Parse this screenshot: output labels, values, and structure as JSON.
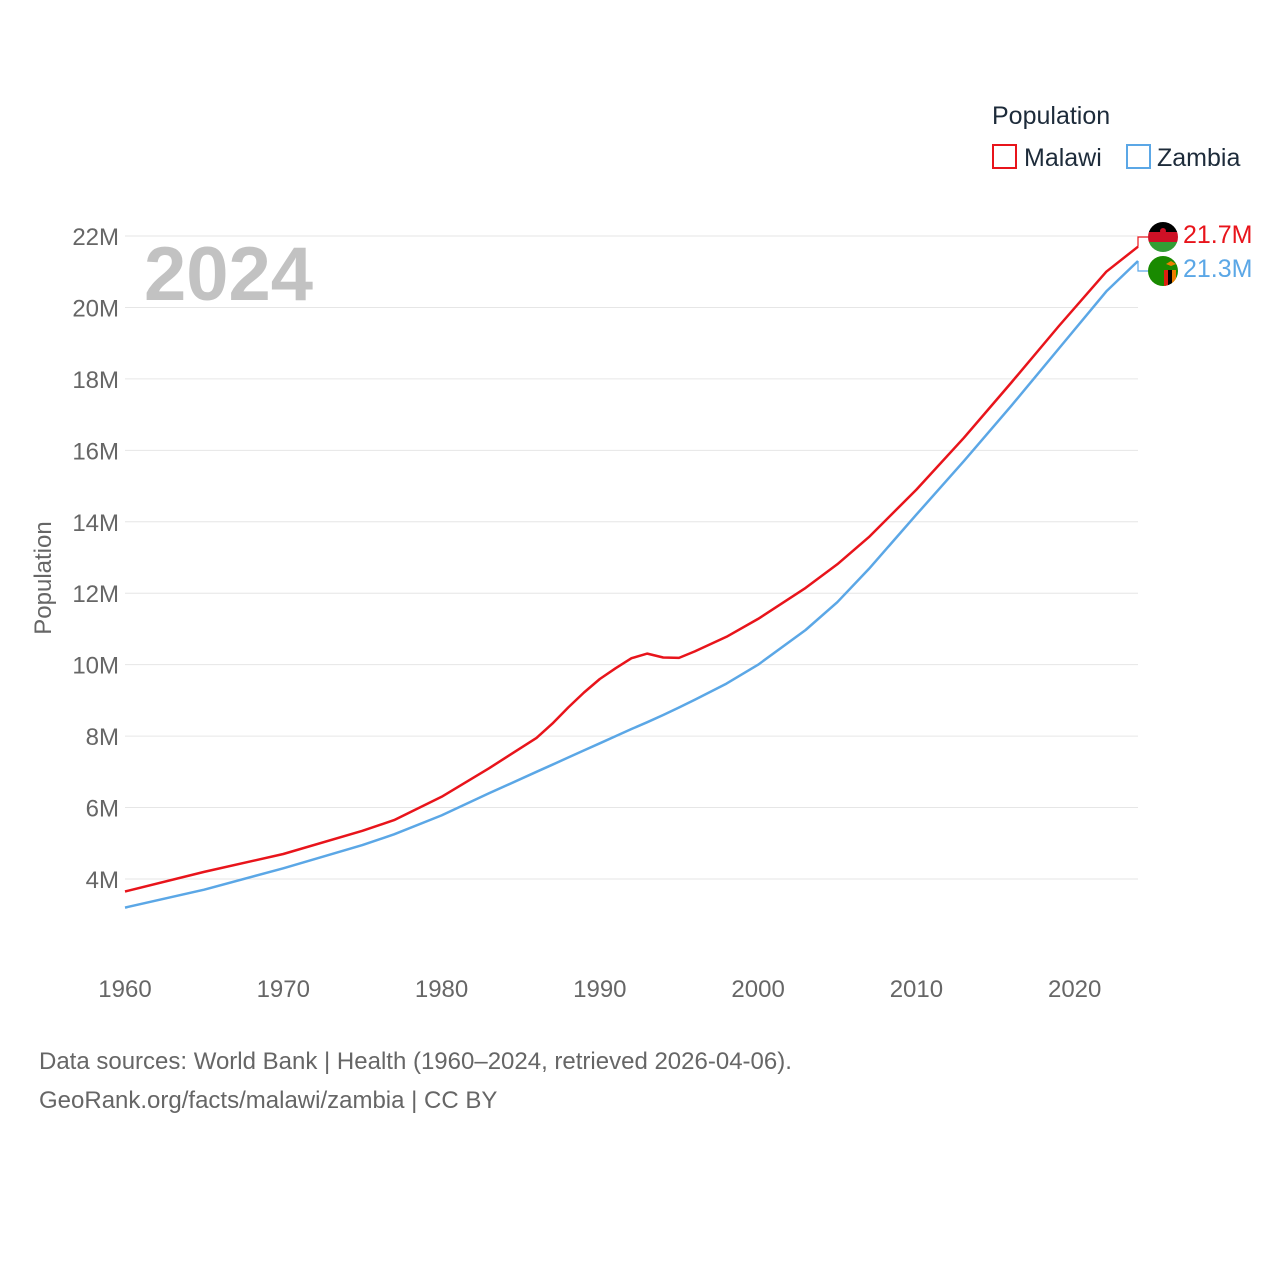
{
  "chart_data": {
    "type": "line",
    "title": "Population",
    "xlabel": "",
    "ylabel": "Population",
    "year_label": "2024",
    "xlim": [
      1960,
      2024
    ],
    "ylim": [
      2000000,
      23000000
    ],
    "x_ticks": [
      1960,
      1970,
      1980,
      1990,
      2000,
      2010,
      2020
    ],
    "x_tick_labels": [
      "1960",
      "1970",
      "1980",
      "1990",
      "2000",
      "2010",
      "2020"
    ],
    "y_ticks": [
      4000000,
      6000000,
      8000000,
      10000000,
      12000000,
      14000000,
      16000000,
      18000000,
      20000000,
      22000000
    ],
    "y_tick_labels": [
      "4M",
      "6M",
      "8M",
      "10M",
      "12M",
      "14M",
      "16M",
      "18M",
      "20M",
      "22M"
    ],
    "legend_position": "top-right",
    "x": [
      1960,
      1965,
      1970,
      1975,
      1977,
      1980,
      1983,
      1986,
      1987,
      1988,
      1989,
      1990,
      1991,
      1992,
      1993,
      1994,
      1995,
      1996,
      1998,
      2000,
      2003,
      2005,
      2007,
      2010,
      2013,
      2016,
      2019,
      2022,
      2024
    ],
    "series": [
      {
        "name": "Malawi",
        "color": "#e8141b",
        "end_label": "21.7M",
        "values": [
          3650000,
          4200000,
          4700000,
          5350000,
          5650000,
          6300000,
          7100000,
          7950000,
          8350000,
          8800000,
          9220000,
          9600000,
          9900000,
          10180000,
          10310000,
          10200000,
          10190000,
          10370000,
          10780000,
          11280000,
          12150000,
          12810000,
          13570000,
          14900000,
          16350000,
          17900000,
          19480000,
          21000000,
          21700000
        ]
      },
      {
        "name": "Zambia",
        "color": "#5ba7e6",
        "end_label": "21.3M",
        "values": [
          3200000,
          3700000,
          4300000,
          4950000,
          5250000,
          5780000,
          6400000,
          7000000,
          7200000,
          7400000,
          7600000,
          7800000,
          8000000,
          8200000,
          8390000,
          8590000,
          8800000,
          9020000,
          9470000,
          10000000,
          10970000,
          11750000,
          12680000,
          14200000,
          15700000,
          17250000,
          18850000,
          20450000,
          21300000
        ]
      }
    ]
  },
  "footer": {
    "line1": "Data sources: World Bank | Health (1960–2024, retrieved 2026-04-06).",
    "line2": "GeoRank.org/facts/malawi/zambia | CC BY"
  }
}
